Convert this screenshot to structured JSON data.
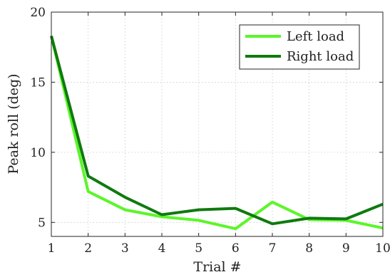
{
  "chart_data": {
    "type": "line",
    "xlabel": "Trial #",
    "ylabel": "Peak roll (deg)",
    "xlim": [
      1,
      10
    ],
    "ylim": [
      4,
      20
    ],
    "x": [
      1,
      2,
      3,
      4,
      5,
      6,
      7,
      8,
      9,
      10
    ],
    "x_ticks": [
      1,
      2,
      3,
      4,
      5,
      6,
      7,
      8,
      9,
      10
    ],
    "y_ticks": [
      5,
      10,
      15,
      20
    ],
    "grid": true,
    "grid_style": "dotted",
    "legend_position": "top-right",
    "series": [
      {
        "name": "Left load",
        "color": "#5cf52a",
        "values": [
          18.3,
          7.2,
          5.9,
          5.4,
          5.15,
          4.55,
          6.45,
          5.2,
          5.15,
          4.6
        ]
      },
      {
        "name": "Right load",
        "color": "#0f7a0f",
        "values": [
          18.3,
          8.3,
          6.8,
          5.55,
          5.9,
          6.0,
          4.9,
          5.3,
          5.25,
          6.3
        ]
      }
    ]
  }
}
